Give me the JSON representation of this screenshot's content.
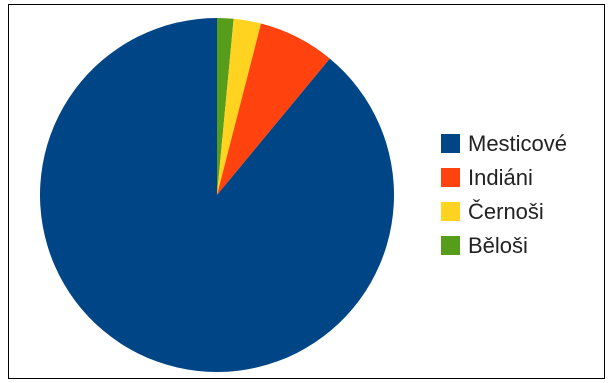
{
  "chart_data": {
    "type": "pie",
    "title": "",
    "legend_position": "right",
    "series": [
      {
        "name": "Mesticové",
        "value": 89.0,
        "color": "#004586"
      },
      {
        "name": "Indiáni",
        "value": 7.0,
        "color": "#FF420E"
      },
      {
        "name": "Černoši",
        "value": 2.5,
        "color": "#FFD320"
      },
      {
        "name": "Běloši",
        "value": 1.5,
        "color": "#579D1C"
      }
    ]
  }
}
